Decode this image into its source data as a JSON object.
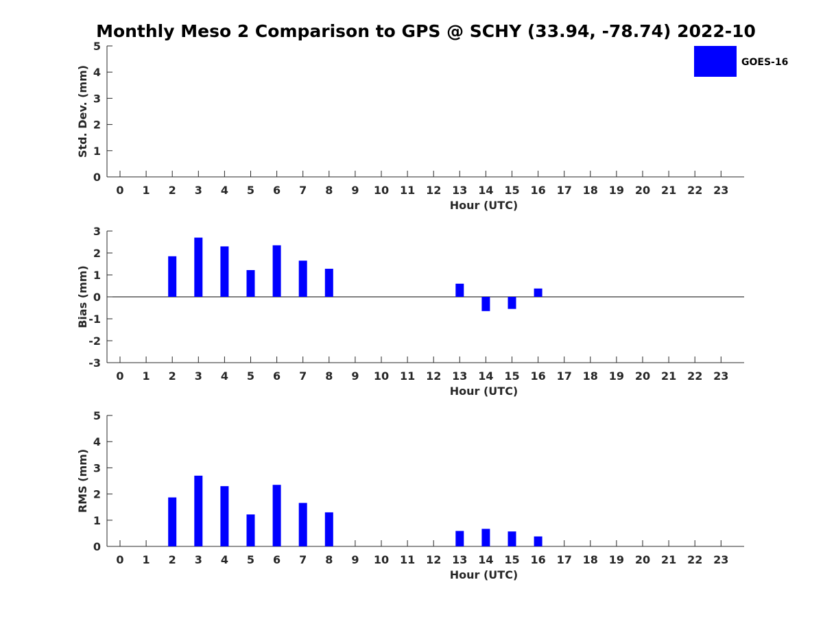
{
  "title": "Monthly Meso 2 Comparison to GPS @ SCHY (33.94, -78.74) 2022-10",
  "legend": {
    "label": "GOES-16",
    "color": "#0000ff",
    "placement": "top-right"
  },
  "chart_data": [
    {
      "type": "bar",
      "name": "stddev",
      "xlabel": "Hour (UTC)",
      "ylabel": "Std. Dev. (mm)",
      "ylim": [
        0,
        5
      ],
      "yticks": [
        0,
        1,
        2,
        3,
        4,
        5
      ],
      "categories": [
        "0",
        "1",
        "2",
        "3",
        "4",
        "5",
        "6",
        "7",
        "8",
        "9",
        "10",
        "11",
        "12",
        "13",
        "14",
        "15",
        "16",
        "17",
        "18",
        "19",
        "20",
        "21",
        "22",
        "23"
      ],
      "values": [
        null,
        null,
        null,
        null,
        null,
        null,
        null,
        null,
        null,
        null,
        null,
        null,
        null,
        null,
        null,
        null,
        null,
        null,
        null,
        null,
        null,
        null,
        null,
        null
      ],
      "color": "#0000ff",
      "zero_line": false
    },
    {
      "type": "bar",
      "name": "bias",
      "xlabel": "Hour (UTC)",
      "ylabel": "Bias (mm)",
      "ylim": [
        -3,
        3
      ],
      "yticks": [
        -3,
        -2,
        -1,
        0,
        1,
        2,
        3
      ],
      "categories": [
        "0",
        "1",
        "2",
        "3",
        "4",
        "5",
        "6",
        "7",
        "8",
        "9",
        "10",
        "11",
        "12",
        "13",
        "14",
        "15",
        "16",
        "17",
        "18",
        "19",
        "20",
        "21",
        "22",
        "23"
      ],
      "values": [
        null,
        null,
        1.85,
        2.7,
        2.3,
        1.22,
        2.35,
        1.65,
        1.28,
        null,
        null,
        null,
        null,
        0.6,
        -0.65,
        -0.55,
        0.38,
        null,
        null,
        null,
        null,
        null,
        null,
        null
      ],
      "color": "#0000ff",
      "zero_line": true
    },
    {
      "type": "bar",
      "name": "rms",
      "xlabel": "Hour (UTC)",
      "ylabel": "RMS (mm)",
      "ylim": [
        0,
        5
      ],
      "yticks": [
        0,
        1,
        2,
        3,
        4,
        5
      ],
      "categories": [
        "0",
        "1",
        "2",
        "3",
        "4",
        "5",
        "6",
        "7",
        "8",
        "9",
        "10",
        "11",
        "12",
        "13",
        "14",
        "15",
        "16",
        "17",
        "18",
        "19",
        "20",
        "21",
        "22",
        "23"
      ],
      "values": [
        null,
        null,
        1.87,
        2.7,
        2.3,
        1.22,
        2.35,
        1.66,
        1.3,
        null,
        null,
        null,
        null,
        0.59,
        0.67,
        0.57,
        0.38,
        null,
        null,
        null,
        null,
        null,
        null,
        null
      ],
      "color": "#0000ff",
      "zero_line": false
    }
  ]
}
